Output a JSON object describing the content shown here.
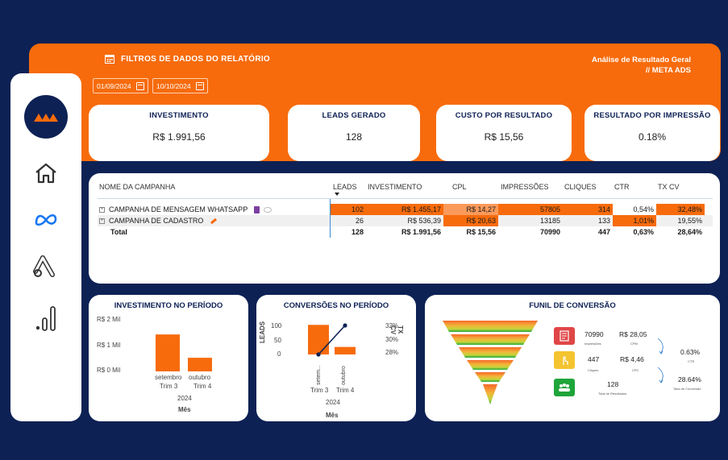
{
  "header": {
    "filter_title": "FILTROS DE DADOS DO RELATÓRIO",
    "report_title": "Análise de Resultado Geral",
    "report_subtitle": "// META ADS",
    "date_start": "01/09/2024",
    "date_end": "10/10/2024"
  },
  "sidebar": {
    "items": [
      "home-icon",
      "meta-icon",
      "google-ads-icon",
      "analytics-icon"
    ]
  },
  "kpis": [
    {
      "title": "INVESTIMENTO",
      "value": "R$ 1.991,56"
    },
    {
      "title": "LEADS GERADO",
      "value": "128"
    },
    {
      "title": "CUSTO POR RESULTADO",
      "value": "R$ 15,56"
    },
    {
      "title": "RESULTADO POR IMPRESSÃO",
      "value": "0.18%"
    }
  ],
  "table": {
    "headers": [
      "NOME DA CAMPANHA",
      "LEADS",
      "INVESTIMENTO",
      "CPL",
      "IMPRESSÕES",
      "CLIQUES",
      "CTR",
      "TX CV"
    ],
    "rows": [
      {
        "name": "CAMPANHA DE MENSAGEM WHATSAPP",
        "leads": "102",
        "investimento": "R$ 1.455,17",
        "cpl": "R$ 14,27",
        "impressoes": "57805",
        "cliques": "314",
        "ctr": "0,54%",
        "txcv": "32,48%"
      },
      {
        "name": "CAMPANHA DE CADASTRO",
        "leads": "26",
        "investimento": "R$ 536,39",
        "cpl": "R$ 20,63",
        "impressoes": "13185",
        "cliques": "133",
        "ctr": "1,01%",
        "txcv": "19,55%"
      }
    ],
    "total": {
      "name": "Total",
      "leads": "128",
      "investimento": "R$ 1.991,56",
      "cpl": "R$ 15,56",
      "impressoes": "70990",
      "cliques": "447",
      "ctr": "0,63%",
      "txcv": "28,64%"
    }
  },
  "investimento_chart": {
    "title": "INVESTIMENTO NO PERÍODO",
    "xlabel": "Mês",
    "year": "2024",
    "ticks": [
      "R$ 2 Mil",
      "R$ 1 Mil",
      "R$ 0 Mil"
    ],
    "months": [
      "setembro",
      "outubro"
    ],
    "quarters": [
      "Trim 3",
      "Trim 4"
    ]
  },
  "conversoes_chart": {
    "title": "CONVERSÕES NO PERÍODO",
    "ylabel": "LEADS",
    "y2label": "TX CV",
    "xlabel": "Mês",
    "year": "2024",
    "left_ticks": [
      "100",
      "50",
      "0"
    ],
    "right_ticks": [
      "32%",
      "30%",
      "28%"
    ],
    "months": [
      "setem...",
      "outubro"
    ],
    "quarters": [
      "Trim 3",
      "Trim 4"
    ]
  },
  "chart_data": [
    {
      "type": "bar",
      "categories": [
        "setembro",
        "outubro"
      ],
      "values": [
        1455.17,
        536.39
      ],
      "title": "INVESTIMENTO NO PERÍODO",
      "xlabel": "Mês",
      "ylabel": "",
      "ylim": [
        0,
        2000
      ],
      "color": "#f76b0c"
    },
    {
      "type": "bar",
      "categories": [
        "setembro",
        "outubro"
      ],
      "series": [
        {
          "name": "LEADS",
          "values": [
            102,
            26
          ],
          "kind": "bar",
          "color": "#f76b0c"
        },
        {
          "name": "TX CV",
          "values": [
            27.5,
            32.5
          ],
          "kind": "line",
          "color": "#0d2154"
        }
      ],
      "title": "CONVERSÕES NO PERÍODO",
      "xlabel": "Mês",
      "ylabel": "LEADS",
      "ylim": [
        0,
        100
      ],
      "y2lim": [
        28,
        32
      ]
    }
  ],
  "funnel": {
    "title": "FUNIL DE CONVERSÃO",
    "impressoes": "70990",
    "impressoes_label": "Impressões",
    "cpm": "R$ 28,05",
    "cpm_label": "CPM",
    "cliques": "447",
    "cliques_label": "Cliques",
    "cpc": "R$ 4,46",
    "cpc_label": "CPC",
    "resultados": "128",
    "resultados_label": "Total de Resultados",
    "ctr": "0.63%",
    "ctr_label": "CTR",
    "tx_conv": "28.64%",
    "tx_conv_label": "Taxa de Conversão"
  },
  "colors": {
    "navy": "#0d2154",
    "orange": "#f76b0c",
    "red_box": "#e04646",
    "yellow_box": "#f4c430",
    "green_box": "#1fa53a"
  }
}
